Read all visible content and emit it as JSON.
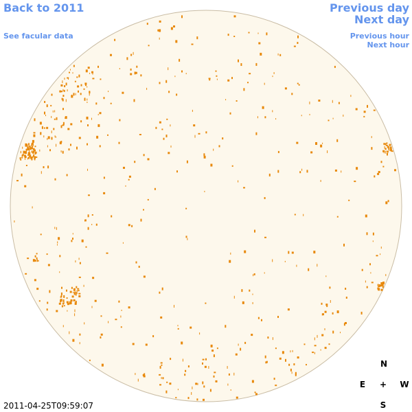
{
  "header": {
    "back_link": "Back to 2011",
    "facular_link": "See facular data",
    "previous_day": "Previous day",
    "next_day": "Next day",
    "previous_hour": "Previous hour",
    "next_hour": "Next hour"
  },
  "timestamp": "2011-04-25T09:59:07",
  "compass": {
    "north": "N",
    "east": "E",
    "center": "+",
    "west": "W",
    "south": "S"
  }
}
